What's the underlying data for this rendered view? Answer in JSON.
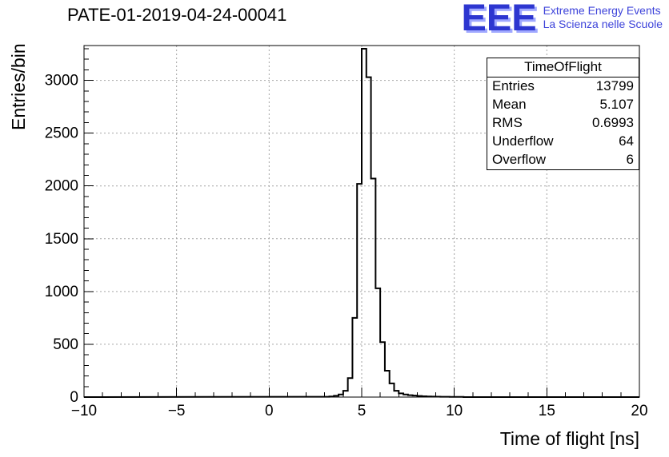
{
  "header": {
    "title": "PATE-01-2019-04-24-00041",
    "logo": {
      "text": "EEE",
      "line1": "Extreme Energy Events",
      "line2": "La Scienza nelle Scuole",
      "color": "#2d36d0"
    }
  },
  "stats": {
    "title": "TimeOfFlight",
    "rows": [
      {
        "label": "Entries",
        "value": "13799"
      },
      {
        "label": "Mean",
        "value": "5.107"
      },
      {
        "label": "RMS",
        "value": "0.6993"
      },
      {
        "label": "Underflow",
        "value": "64"
      },
      {
        "label": "Overflow",
        "value": "6"
      }
    ]
  },
  "chart_data": {
    "type": "bar",
    "subtype": "step-histogram",
    "title": "PATE-01-2019-04-24-00041",
    "xlabel": "Time of flight [ns]",
    "ylabel": "Entries/bin",
    "xlim": [
      -10,
      20
    ],
    "ylim": [
      0,
      3330
    ],
    "x_major_ticks": [
      -10,
      -5,
      0,
      5,
      10,
      15,
      20
    ],
    "x_tick_labels": [
      "−10",
      "−5",
      "0",
      "5",
      "10",
      "15",
      "20"
    ],
    "x_minor_step": 1,
    "y_major_ticks": [
      0,
      500,
      1000,
      1500,
      2000,
      2500,
      3000
    ],
    "y_tick_labels": [
      "0",
      "500",
      "1000",
      "1500",
      "2000",
      "2500",
      "3000"
    ],
    "y_minor_step": 100,
    "grid": true,
    "legend": "none",
    "line_color": "#000000",
    "grid_color": "#a6a6a6",
    "bins": {
      "start": 3.0,
      "width": 0.25,
      "counts": [
        3,
        6,
        12,
        25,
        60,
        180,
        750,
        2020,
        3300,
        3030,
        2070,
        1030,
        520,
        250,
        130,
        60,
        35,
        25,
        18,
        14,
        10,
        8,
        6,
        5,
        4,
        3,
        3,
        2,
        2,
        2
      ]
    },
    "stats": {
      "entries": 13799,
      "mean": 5.107,
      "rms": 0.6993,
      "underflow": 64,
      "overflow": 6
    }
  }
}
